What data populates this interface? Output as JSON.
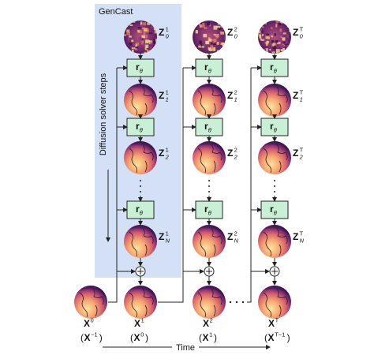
{
  "panel": {
    "title": "GenCast",
    "side_label": "Diffusion solver steps"
  },
  "operator": {
    "base": "r",
    "sub": "θ"
  },
  "initial": {
    "state": {
      "base": "X",
      "sup": "0"
    },
    "input": {
      "open": "(",
      "base": "X",
      "sup": "−1",
      "close": ")"
    }
  },
  "columns": [
    {
      "latents": [
        {
          "base": "Z",
          "sub": "0",
          "sup": "1"
        },
        {
          "base": "Z",
          "sub": "1",
          "sup": "1"
        },
        {
          "base": "Z",
          "sub": "2",
          "sup": "1"
        },
        {
          "base": "Z",
          "sub": "N",
          "sup": "1"
        }
      ],
      "output": {
        "base": "X",
        "sup": "1"
      },
      "input": {
        "open": "(",
        "base": "X",
        "sup": "0",
        "close": ")"
      }
    },
    {
      "latents": [
        {
          "base": "Z",
          "sub": "0",
          "sup": "2"
        },
        {
          "base": "Z",
          "sub": "1",
          "sup": "2"
        },
        {
          "base": "Z",
          "sub": "2",
          "sup": "2"
        },
        {
          "base": "Z",
          "sub": "N",
          "sup": "2"
        }
      ],
      "output": {
        "base": "X",
        "sup": "2"
      },
      "input": {
        "open": "(",
        "base": "X",
        "sup": "1",
        "close": ")"
      }
    },
    {
      "latents": [
        {
          "base": "Z",
          "sub": "0",
          "sup": "T"
        },
        {
          "base": "Z",
          "sub": "1",
          "sup": "T"
        },
        {
          "base": "Z",
          "sub": "2",
          "sup": "T"
        },
        {
          "base": "Z",
          "sub": "N",
          "sup": "T"
        }
      ],
      "output": {
        "base": "X",
        "sup": "T"
      },
      "input": {
        "open": "(",
        "base": "X",
        "sup": "T−1",
        "close": ")"
      }
    }
  ],
  "time_label": "Time"
}
